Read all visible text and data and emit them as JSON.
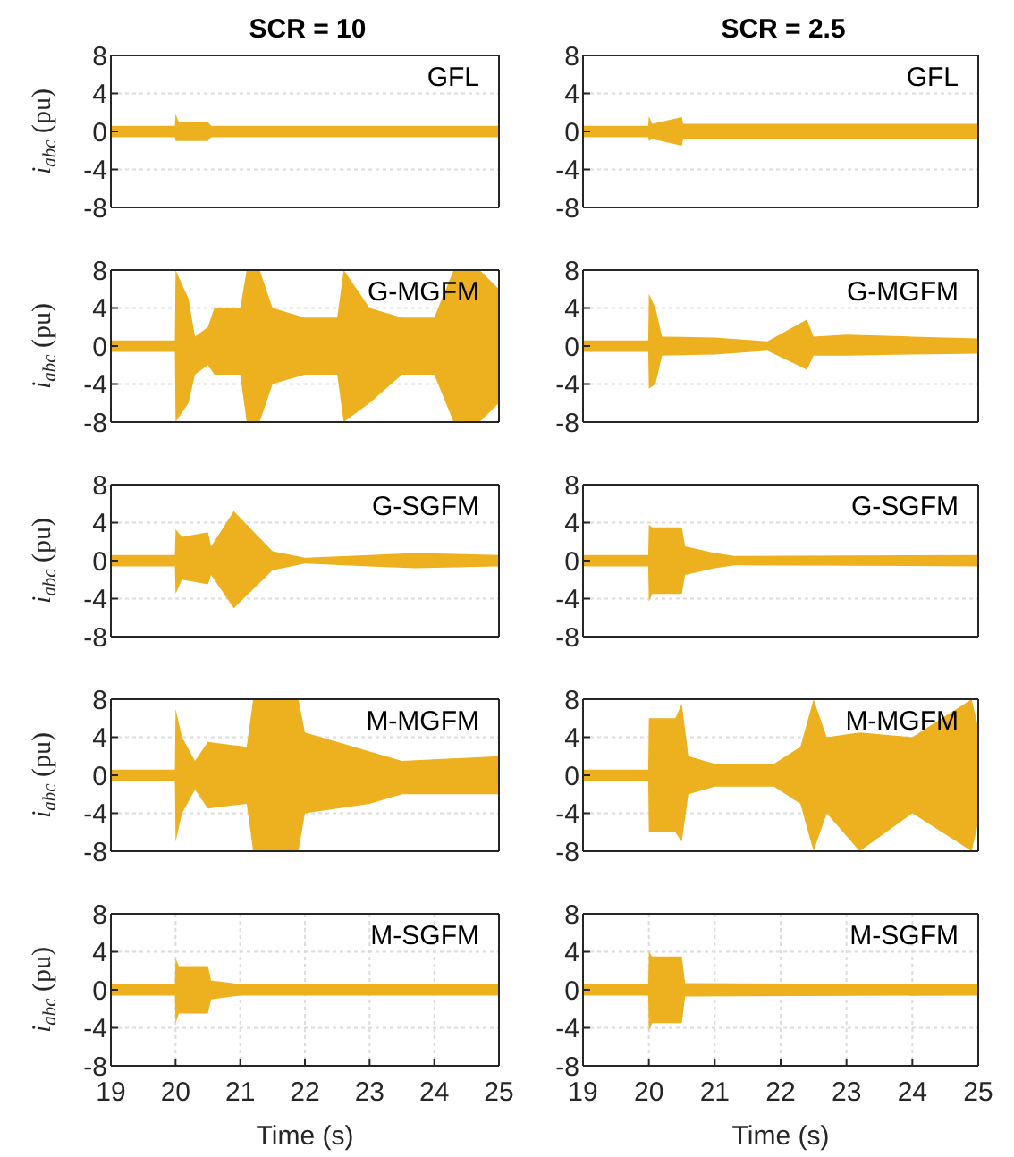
{
  "chart_data": [
    {
      "type": "line",
      "title": "SCR = 10",
      "ylabel": "i$_{abc}$ (pu)",
      "annotations": [
        "GFL"
      ],
      "xlim": [
        19,
        25
      ],
      "xticks": [
        19,
        20,
        21,
        22,
        23,
        24,
        25
      ],
      "ylim": [
        -8,
        8
      ],
      "yticks": [
        8,
        4,
        0,
        -4,
        -8
      ],
      "grid": true,
      "tick_labels": "y",
      "series": [
        {
          "color": "#edb120",
          "x": [
            19,
            19.99,
            20,
            20.05,
            20.5,
            20.55,
            25
          ],
          "values": [
            0,
            0,
            0,
            0,
            0,
            0,
            0
          ],
          "lower": [
            -0.6,
            -0.6,
            -1,
            -1,
            -1,
            -0.6,
            -0.6
          ],
          "upper": [
            0.6,
            0.6,
            1.8,
            1,
            1,
            0.6,
            0.6
          ]
        }
      ]
    },
    {
      "type": "line",
      "title": "SCR = 2.5",
      "annotations": [
        "GFL"
      ],
      "xlim": [
        19,
        25
      ],
      "xticks": [
        19,
        20,
        21,
        22,
        23,
        24,
        25
      ],
      "ylim": [
        -8,
        8
      ],
      "yticks": [
        8,
        4,
        0,
        -4,
        -8
      ],
      "grid": true,
      "tick_labels": "y",
      "series": [
        {
          "color": "#edb120",
          "x": [
            19,
            19.99,
            20,
            20.05,
            20.5,
            20.52,
            21,
            25
          ],
          "values": [
            0,
            0,
            0,
            0,
            0,
            0,
            0,
            0
          ],
          "lower": [
            -0.6,
            -0.6,
            -1,
            -0.8,
            -1.5,
            -0.8,
            -0.8,
            -0.8
          ],
          "upper": [
            0.6,
            0.6,
            1.6,
            0.8,
            1.5,
            0.8,
            0.8,
            0.8
          ]
        }
      ]
    },
    {
      "type": "line",
      "ylabel": "i$_{abc}$ (pu)",
      "annotations": [
        "G-MGFM"
      ],
      "xlim": [
        19,
        25
      ],
      "xticks": [
        19,
        20,
        21,
        22,
        23,
        24,
        25
      ],
      "ylim": [
        -8,
        8
      ],
      "yticks": [
        8,
        4,
        0,
        -4,
        -8
      ],
      "grid": true,
      "tick_labels": "y",
      "series": [
        {
          "color": "#edb120",
          "x": [
            19,
            19.99,
            20,
            20.2,
            20.3,
            20.5,
            20.6,
            21,
            21.1,
            21.3,
            21.5,
            22,
            22.5,
            22.6,
            23,
            23.5,
            24,
            24.3,
            24.7,
            25
          ],
          "values": [
            0,
            0,
            0,
            0,
            0,
            0,
            0,
            0,
            0,
            0,
            0,
            0,
            0,
            0,
            0,
            0,
            0,
            0,
            0,
            0
          ],
          "lower": [
            -0.6,
            -0.6,
            -8,
            -6,
            -3,
            -2,
            -3,
            -3,
            -8,
            -8,
            -4,
            -3,
            -3,
            -8,
            -6,
            -3,
            -3,
            -8,
            -8,
            -6
          ],
          "upper": [
            0.6,
            0.6,
            8,
            5,
            1,
            2,
            4,
            4,
            8,
            8,
            4,
            3,
            3,
            8,
            4,
            3,
            3,
            8,
            8,
            6
          ]
        }
      ]
    },
    {
      "type": "line",
      "annotations": [
        "G-MGFM"
      ],
      "xlim": [
        19,
        25
      ],
      "xticks": [
        19,
        20,
        21,
        22,
        23,
        24,
        25
      ],
      "ylim": [
        -8,
        8
      ],
      "yticks": [
        8,
        4,
        0,
        -4,
        -8
      ],
      "grid": true,
      "tick_labels": "y",
      "series": [
        {
          "color": "#edb120",
          "x": [
            19,
            19.99,
            20,
            20.1,
            20.2,
            21,
            21.8,
            22.4,
            22.5,
            23,
            24,
            25
          ],
          "values": [
            0,
            0,
            0,
            0,
            0,
            0,
            0,
            0,
            0,
            0,
            0,
            0
          ],
          "lower": [
            -0.6,
            -0.6,
            -4.5,
            -4,
            -1,
            -0.9,
            -0.5,
            -2.5,
            -1,
            -1,
            -0.9,
            -0.8
          ],
          "upper": [
            0.6,
            0.6,
            5.5,
            4,
            1,
            0.9,
            0.5,
            2.8,
            1,
            1.2,
            1,
            0.8
          ]
        }
      ]
    },
    {
      "type": "line",
      "ylabel": "i$_{abc}$ (pu)",
      "annotations": [
        "G-SGFM"
      ],
      "xlim": [
        19,
        25
      ],
      "xticks": [
        19,
        20,
        21,
        22,
        23,
        24,
        25
      ],
      "ylim": [
        -8,
        8
      ],
      "yticks": [
        8,
        4,
        0,
        -4,
        -8
      ],
      "grid": true,
      "tick_labels": "y",
      "series": [
        {
          "color": "#edb120",
          "x": [
            19,
            19.99,
            20,
            20.1,
            20.5,
            20.55,
            20.9,
            21.5,
            22,
            23,
            23.7,
            25
          ],
          "values": [
            0,
            0,
            0,
            0,
            0,
            0,
            0,
            0,
            0,
            0,
            0,
            0
          ],
          "lower": [
            -0.6,
            -0.6,
            -3.5,
            -2,
            -2.5,
            -1.5,
            -5,
            -1,
            -0.3,
            -0.6,
            -0.8,
            -0.6
          ],
          "upper": [
            0.6,
            0.6,
            3.3,
            2.5,
            3,
            1.5,
            5.2,
            1,
            0.3,
            0.6,
            0.8,
            0.6
          ]
        }
      ]
    },
    {
      "type": "line",
      "annotations": [
        "G-SGFM"
      ],
      "xlim": [
        19,
        25
      ],
      "xticks": [
        19,
        20,
        21,
        22,
        23,
        24,
        25
      ],
      "ylim": [
        -8,
        8
      ],
      "yticks": [
        8,
        4,
        0,
        -4,
        -8
      ],
      "grid": true,
      "tick_labels": "y",
      "series": [
        {
          "color": "#edb120",
          "x": [
            19,
            19.99,
            20,
            20.05,
            20.5,
            20.55,
            21,
            21.3,
            25
          ],
          "values": [
            0,
            0,
            0,
            0,
            0,
            0,
            0,
            0,
            0
          ],
          "lower": [
            -0.6,
            -0.6,
            -4.3,
            -3.5,
            -3.5,
            -1.5,
            -0.8,
            -0.5,
            -0.6
          ],
          "upper": [
            0.6,
            0.6,
            3.8,
            3.5,
            3.5,
            1.5,
            0.8,
            0.5,
            0.6
          ]
        }
      ]
    },
    {
      "type": "line",
      "ylabel": "i$_{abc}$ (pu)",
      "annotations": [
        "M-MGFM"
      ],
      "xlim": [
        19,
        25
      ],
      "xticks": [
        19,
        20,
        21,
        22,
        23,
        24,
        25
      ],
      "ylim": [
        -8,
        8
      ],
      "yticks": [
        8,
        4,
        0,
        -4,
        -8
      ],
      "grid": true,
      "tick_labels": "y",
      "series": [
        {
          "color": "#edb120",
          "x": [
            19,
            19.99,
            20,
            20.1,
            20.3,
            20.5,
            21.1,
            21.2,
            21.9,
            22,
            22.5,
            23,
            23.5,
            25
          ],
          "values": [
            0,
            0,
            0,
            0,
            0,
            0,
            0,
            0,
            0,
            0,
            0,
            0,
            0,
            0
          ],
          "lower": [
            -0.6,
            -0.6,
            -7,
            -4,
            -1.5,
            -3.5,
            -3,
            -8,
            -8,
            -4,
            -3.5,
            -3,
            -2,
            -2
          ],
          "upper": [
            0.6,
            0.6,
            7,
            4,
            1.5,
            3.5,
            3,
            8,
            8,
            4.5,
            3.5,
            2.5,
            1.5,
            2
          ]
        }
      ]
    },
    {
      "type": "line",
      "annotations": [
        "M-MGFM"
      ],
      "xlim": [
        19,
        25
      ],
      "xticks": [
        19,
        20,
        21,
        22,
        23,
        24,
        25
      ],
      "ylim": [
        -8,
        8
      ],
      "yticks": [
        8,
        4,
        0,
        -4,
        -8
      ],
      "grid": true,
      "tick_labels": "y",
      "series": [
        {
          "color": "#edb120",
          "x": [
            19,
            19.99,
            20,
            20.4,
            20.5,
            20.6,
            21,
            21.9,
            22.3,
            22.5,
            22.7,
            23.2,
            24,
            24.9,
            25
          ],
          "values": [
            0,
            0,
            0,
            0,
            0,
            0,
            0,
            0,
            0,
            0,
            0,
            0,
            0,
            0,
            0
          ],
          "lower": [
            -0.6,
            -0.6,
            -6,
            -6,
            -7,
            -2,
            -1.2,
            -1.2,
            -3,
            -8,
            -4,
            -8,
            -4,
            -8,
            -5
          ],
          "upper": [
            0.6,
            0.6,
            6,
            6,
            7.5,
            2,
            1.2,
            1.2,
            3,
            8,
            4,
            4.5,
            4,
            8,
            5
          ]
        }
      ]
    },
    {
      "type": "line",
      "xlabel": "Time (s)",
      "ylabel": "i$_{abc}$ (pu)",
      "annotations": [
        "M-SGFM"
      ],
      "xlim": [
        19,
        25
      ],
      "xticks": [
        19,
        20,
        21,
        22,
        23,
        24,
        25
      ],
      "ylim": [
        -8,
        8
      ],
      "yticks": [
        8,
        4,
        0,
        -4,
        -8
      ],
      "grid": true,
      "series": [
        {
          "color": "#edb120",
          "x": [
            19,
            19.99,
            20,
            20.05,
            20.5,
            20.55,
            21,
            25
          ],
          "values": [
            0,
            0,
            0,
            0,
            0,
            0,
            0,
            0
          ],
          "lower": [
            -0.6,
            -0.6,
            -3.5,
            -2.5,
            -2.5,
            -1,
            -0.6,
            -0.6
          ],
          "upper": [
            0.6,
            0.6,
            3.3,
            2.5,
            2.5,
            1,
            0.6,
            0.6
          ]
        }
      ]
    },
    {
      "type": "line",
      "xlabel": "Time (s)",
      "annotations": [
        "M-SGFM"
      ],
      "xlim": [
        19,
        25
      ],
      "xticks": [
        19,
        20,
        21,
        22,
        23,
        24,
        25
      ],
      "ylim": [
        -8,
        8
      ],
      "yticks": [
        8,
        4,
        0,
        -4,
        -8
      ],
      "grid": true,
      "series": [
        {
          "color": "#edb120",
          "x": [
            19,
            19.99,
            20,
            20.05,
            20.5,
            20.55,
            25
          ],
          "values": [
            0,
            0,
            0,
            0,
            0,
            0,
            0
          ],
          "lower": [
            -0.6,
            -0.6,
            -4.3,
            -3.5,
            -3.5,
            -0.7,
            -0.6
          ],
          "upper": [
            0.6,
            0.6,
            4,
            3.5,
            3.5,
            0.7,
            0.6
          ]
        }
      ]
    }
  ]
}
